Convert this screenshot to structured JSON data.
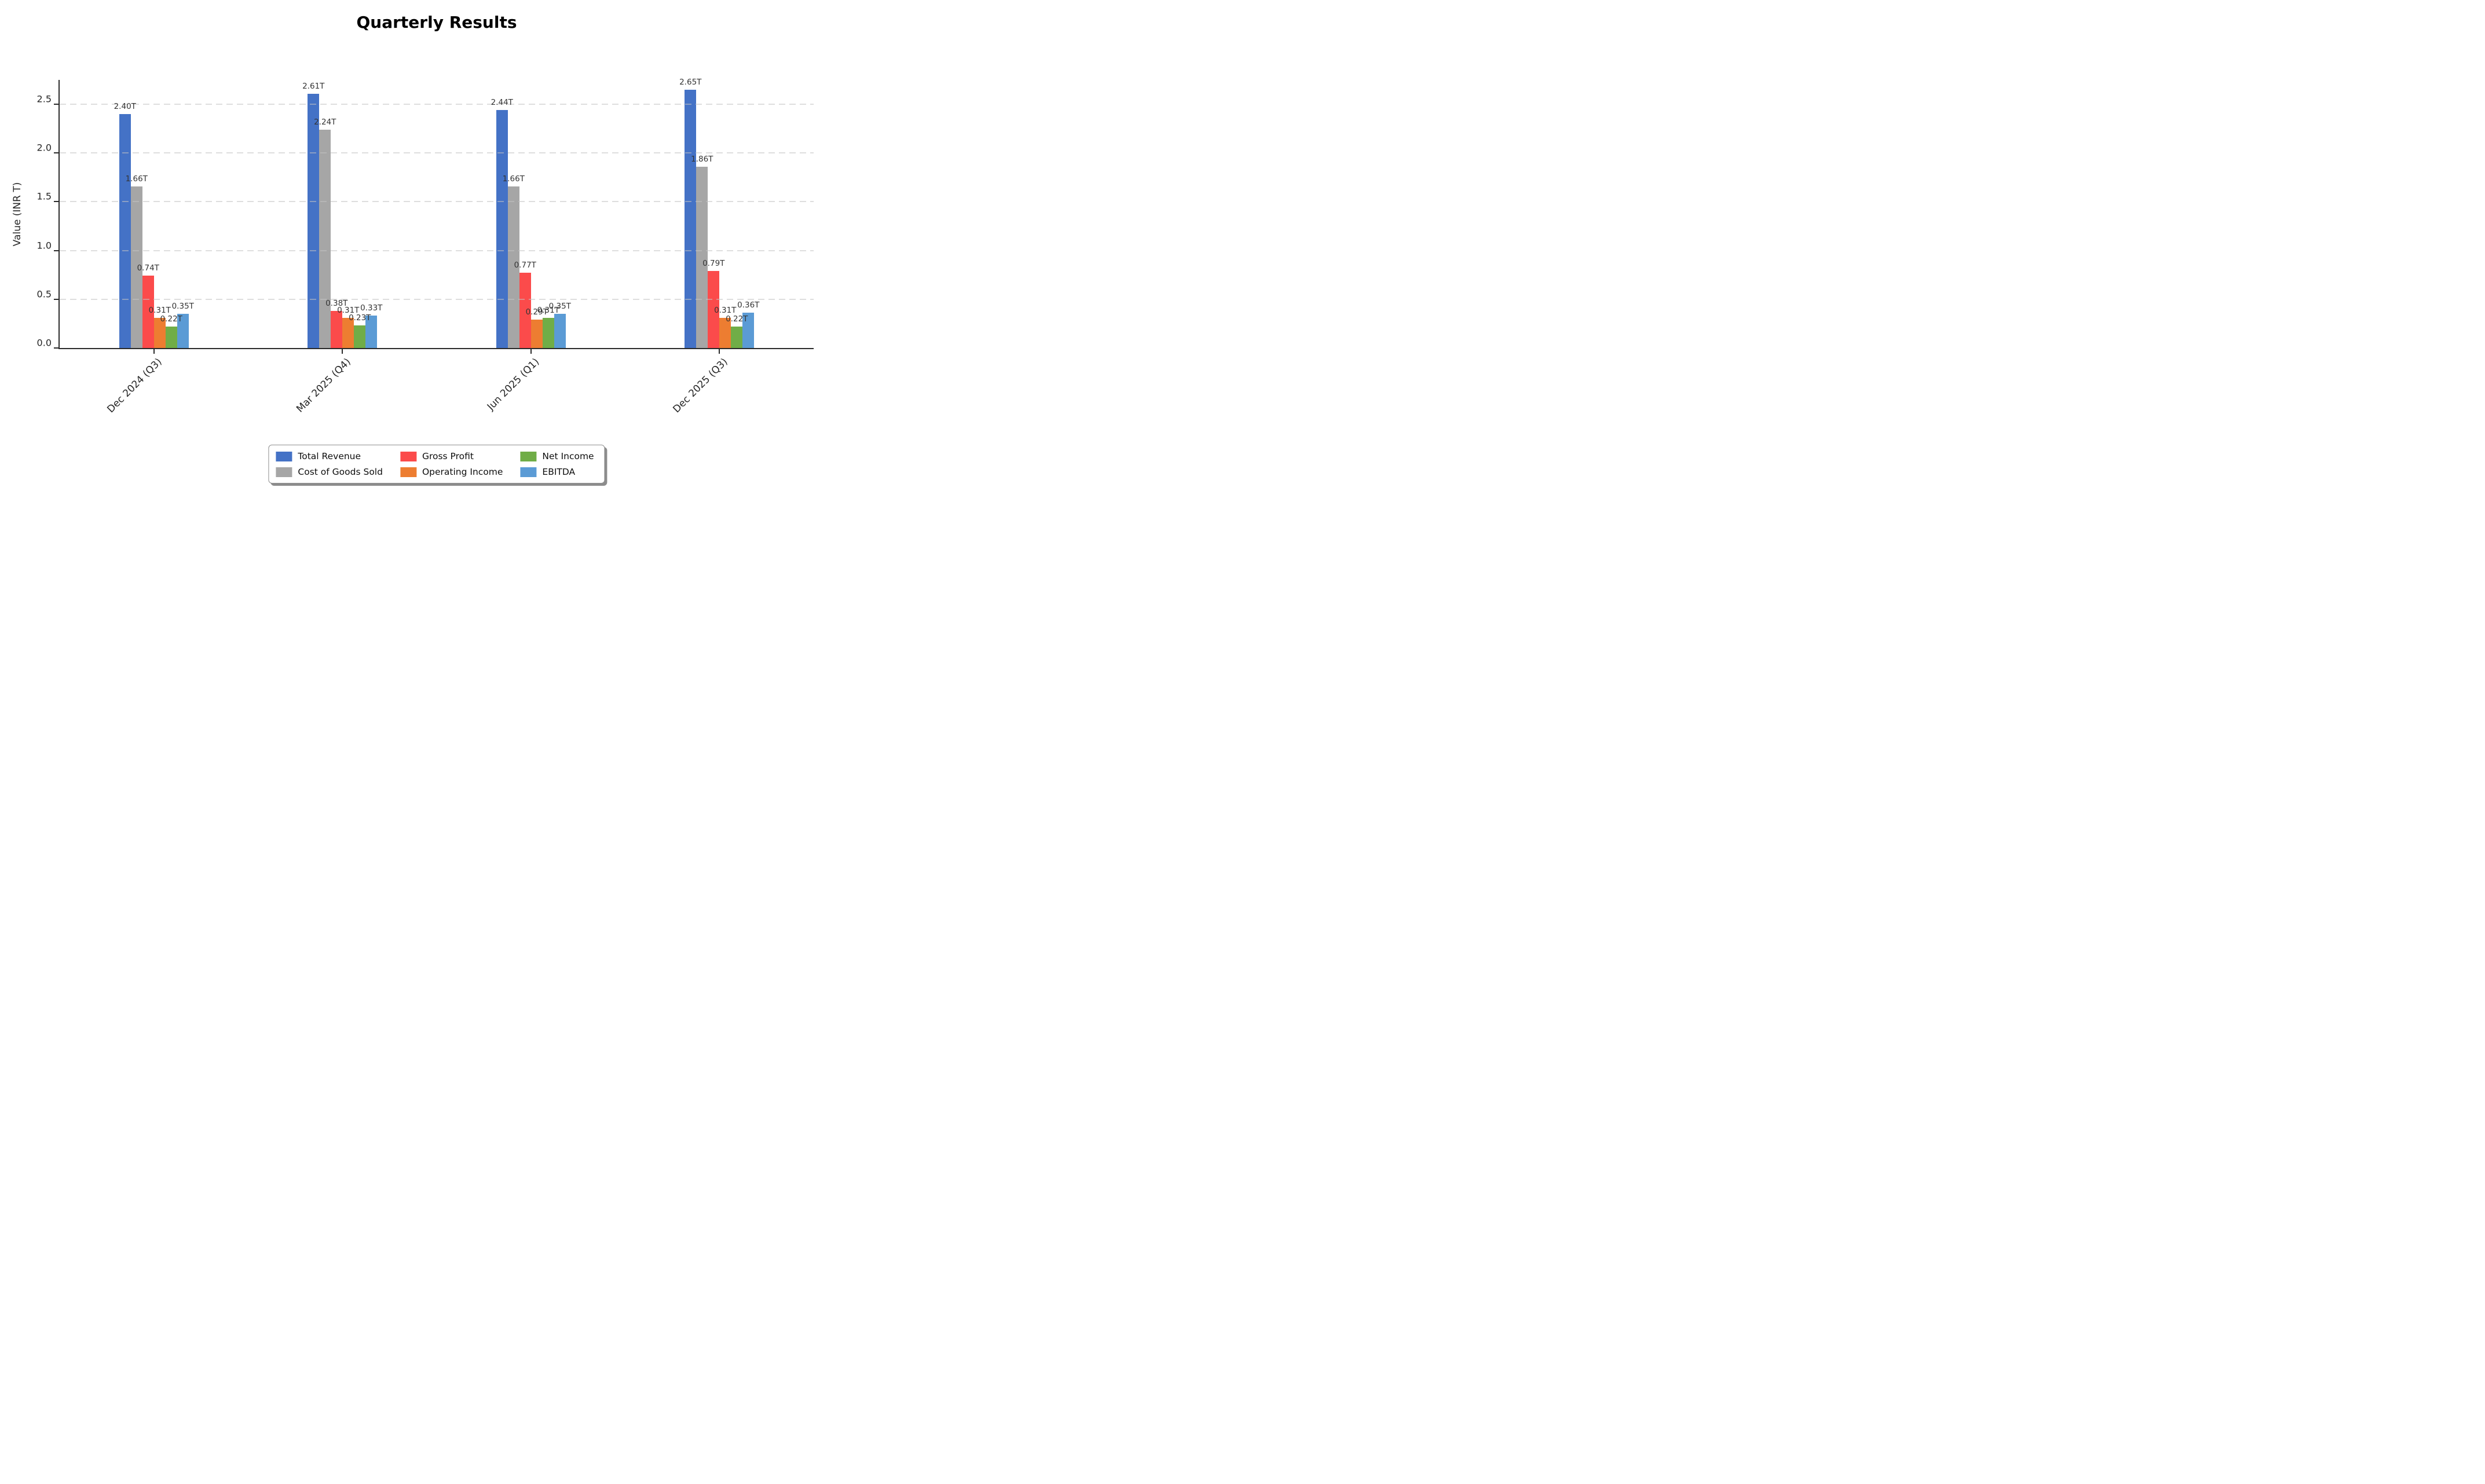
{
  "title": "Quarterly Results",
  "chart_data": {
    "type": "bar",
    "title": "Quarterly Results",
    "xlabel": "",
    "ylabel": "Value (INR T)",
    "categories": [
      "Dec 2024 (Q3)",
      "Mar 2025 (Q4)",
      "Jun 2025 (Q1)",
      "Dec 2025 (Q3)"
    ],
    "series": [
      {
        "name": "Total Revenue",
        "color": "#4472C6",
        "values": [
          2.4,
          2.61,
          2.44,
          2.65
        ]
      },
      {
        "name": "Cost of Goods Sold",
        "color": "#A6A6A6",
        "values": [
          1.66,
          2.24,
          1.66,
          1.86
        ]
      },
      {
        "name": "Gross Profit",
        "color": "#FB4B4B",
        "values": [
          0.74,
          0.38,
          0.77,
          0.79
        ]
      },
      {
        "name": "Operating Income",
        "color": "#ED7D31",
        "values": [
          0.31,
          0.31,
          0.29,
          0.31
        ]
      },
      {
        "name": "Net Income",
        "color": "#70AD47",
        "values": [
          0.22,
          0.23,
          0.31,
          0.22
        ]
      },
      {
        "name": "EBITDA",
        "color": "#5B9BD5",
        "values": [
          0.35,
          0.33,
          0.35,
          0.36
        ]
      }
    ],
    "value_label_suffix": "T",
    "value_label_decimals": 2,
    "yticks": [
      0.0,
      0.5,
      1.0,
      1.5,
      2.0,
      2.5
    ],
    "ytick_labels": [
      "0.0",
      "0.5",
      "1.0",
      "1.5",
      "2.0",
      "2.5"
    ],
    "ylim": [
      0,
      2.75
    ],
    "grid": "horizontal-dashed",
    "legend_position": "bottom-center",
    "legend_row_major_order": [
      "Total Revenue",
      "Gross Profit",
      "Net Income",
      "Cost of Goods Sold",
      "Operating Income",
      "EBITDA"
    ]
  }
}
